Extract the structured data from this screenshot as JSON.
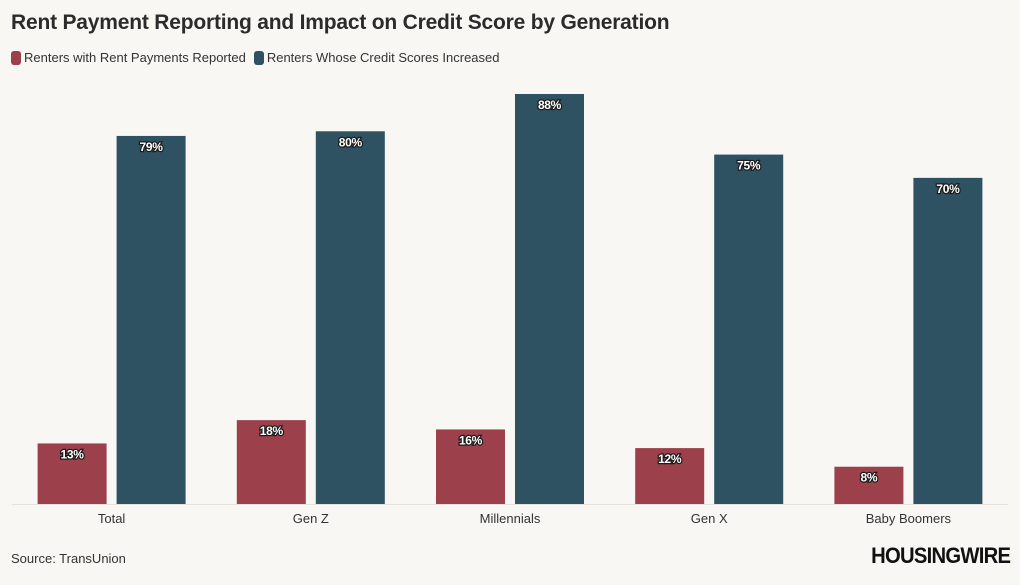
{
  "chart_data": {
    "type": "bar",
    "title": "Rent Payment Reporting and Impact on Credit Score by Generation",
    "categories": [
      "Total",
      "Gen Z",
      "Millennials",
      "Gen X",
      "Baby Boomers"
    ],
    "series": [
      {
        "name": "Renters with Rent Payments Reported",
        "values": [
          13,
          18,
          16,
          12,
          8
        ],
        "labels": [
          "13%",
          "18%",
          "16%",
          "12%",
          "8%"
        ],
        "color": "#9c404b"
      },
      {
        "name": "Renters Whose Credit Scores Increased",
        "values": [
          79,
          80,
          88,
          75,
          70
        ],
        "labels": [
          "79%",
          "80%",
          "88%",
          "75%",
          "70%"
        ],
        "color": "#2f5263"
      }
    ],
    "xlabel": "",
    "ylabel": "",
    "ylim": [
      0,
      88
    ],
    "grid": false,
    "legend_position": "top-left"
  },
  "source": "Source: TransUnion",
  "logo": "HOUSINGWIRE"
}
